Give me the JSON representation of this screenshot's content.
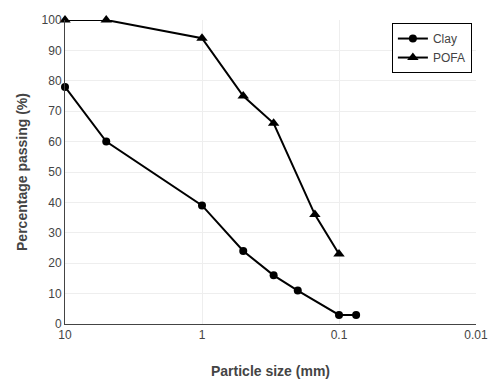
{
  "chart_data": {
    "type": "line",
    "x_label": "Particle size (mm)",
    "y_label": "Percentage passing (%)",
    "series": [
      {
        "name": "Clay",
        "color": "#000000",
        "marker": "circle",
        "x": [
          10,
          5,
          1,
          0.5,
          0.3,
          0.2,
          0.1,
          0.075
        ],
        "values": [
          78,
          60,
          39,
          24,
          16,
          11,
          3,
          3
        ]
      },
      {
        "name": "POFA",
        "color": "#000000",
        "marker": "triangle",
        "x": [
          10,
          5,
          1,
          0.5,
          0.3,
          0.15,
          0.1
        ],
        "values": [
          100,
          100,
          94,
          75,
          66,
          36,
          23
        ]
      }
    ],
    "log": "x",
    "xlim": [
      10,
      0.01
    ],
    "xticks": [
      10,
      1,
      0.1,
      0.01
    ],
    "ylim": [
      0,
      100
    ],
    "yticks": [
      0,
      10,
      20,
      30,
      40,
      50,
      60,
      70,
      80,
      90,
      100
    ],
    "grid": true,
    "legend": "upper right"
  }
}
